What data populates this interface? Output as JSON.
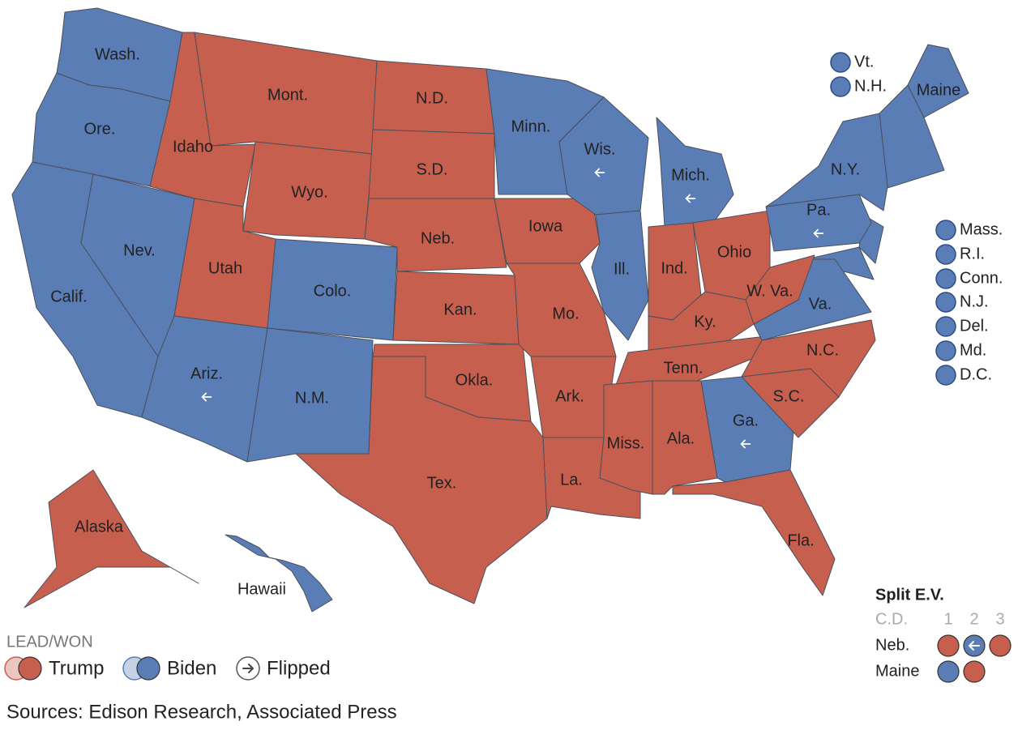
{
  "map": {
    "parties": [
      {
        "label": "Trump",
        "color": "#c75f4f"
      },
      {
        "label": "Biden",
        "color": "#5a7db6"
      }
    ],
    "states": [
      {
        "label": "Wash.",
        "winner": "Biden",
        "flipped": false
      },
      {
        "label": "Ore.",
        "winner": "Biden",
        "flipped": false
      },
      {
        "label": "Calif.",
        "winner": "Biden",
        "flipped": false
      },
      {
        "label": "Nev.",
        "winner": "Biden",
        "flipped": false
      },
      {
        "label": "Idaho",
        "winner": "Trump",
        "flipped": false
      },
      {
        "label": "Mont.",
        "winner": "Trump",
        "flipped": false
      },
      {
        "label": "Wyo.",
        "winner": "Trump",
        "flipped": false
      },
      {
        "label": "Utah",
        "winner": "Trump",
        "flipped": false
      },
      {
        "label": "Colo.",
        "winner": "Biden",
        "flipped": false
      },
      {
        "label": "Ariz.",
        "winner": "Biden",
        "flipped": true
      },
      {
        "label": "N.M.",
        "winner": "Biden",
        "flipped": false
      },
      {
        "label": "N.D.",
        "winner": "Trump",
        "flipped": false
      },
      {
        "label": "S.D.",
        "winner": "Trump",
        "flipped": false
      },
      {
        "label": "Neb.",
        "winner": "Trump",
        "flipped": false
      },
      {
        "label": "Kan.",
        "winner": "Trump",
        "flipped": false
      },
      {
        "label": "Okla.",
        "winner": "Trump",
        "flipped": false
      },
      {
        "label": "Tex.",
        "winner": "Trump",
        "flipped": false
      },
      {
        "label": "Minn.",
        "winner": "Biden",
        "flipped": false
      },
      {
        "label": "Iowa",
        "winner": "Trump",
        "flipped": false
      },
      {
        "label": "Mo.",
        "winner": "Trump",
        "flipped": false
      },
      {
        "label": "Ark.",
        "winner": "Trump",
        "flipped": false
      },
      {
        "label": "La.",
        "winner": "Trump",
        "flipped": false
      },
      {
        "label": "Wis.",
        "winner": "Biden",
        "flipped": true
      },
      {
        "label": "Ill.",
        "winner": "Biden",
        "flipped": false
      },
      {
        "label": "Mich.",
        "winner": "Biden",
        "flipped": true
      },
      {
        "label": "Ind.",
        "winner": "Trump",
        "flipped": false
      },
      {
        "label": "Ohio",
        "winner": "Trump",
        "flipped": false
      },
      {
        "label": "Ky.",
        "winner": "Trump",
        "flipped": false
      },
      {
        "label": "Tenn.",
        "winner": "Trump",
        "flipped": false
      },
      {
        "label": "Miss.",
        "winner": "Trump",
        "flipped": false
      },
      {
        "label": "Ala.",
        "winner": "Trump",
        "flipped": false
      },
      {
        "label": "Ga.",
        "winner": "Biden",
        "flipped": true
      },
      {
        "label": "Fla.",
        "winner": "Trump",
        "flipped": false
      },
      {
        "label": "S.C.",
        "winner": "Trump",
        "flipped": false
      },
      {
        "label": "N.C.",
        "winner": "Trump",
        "flipped": false
      },
      {
        "label": "Va.",
        "winner": "Biden",
        "flipped": false
      },
      {
        "label": "W. Va.",
        "winner": "Trump",
        "flipped": false
      },
      {
        "label": "Pa.",
        "winner": "Biden",
        "flipped": true
      },
      {
        "label": "N.Y.",
        "winner": "Biden",
        "flipped": false
      },
      {
        "label": "Maine",
        "winner": "Biden",
        "flipped": false
      },
      {
        "label": "Alaska",
        "winner": "Trump",
        "flipped": false
      },
      {
        "label": "Hawaii",
        "winner": "Biden",
        "flipped": false
      }
    ],
    "small_states": [
      {
        "label": "Vt.",
        "winner": "Biden"
      },
      {
        "label": "N.H.",
        "winner": "Biden"
      },
      {
        "label": "Mass.",
        "winner": "Biden"
      },
      {
        "label": "R.I.",
        "winner": "Biden"
      },
      {
        "label": "Conn.",
        "winner": "Biden"
      },
      {
        "label": "N.J.",
        "winner": "Biden"
      },
      {
        "label": "Del.",
        "winner": "Biden"
      },
      {
        "label": "Md.",
        "winner": "Biden"
      },
      {
        "label": "D.C.",
        "winner": "Biden"
      }
    ],
    "split": {
      "title": "Split E.V.",
      "header": "C.D.",
      "districts": [
        "1",
        "2",
        "3"
      ],
      "rows": [
        {
          "label": "Neb.",
          "winners": [
            "Trump",
            "Biden",
            "Trump"
          ],
          "flipped": [
            false,
            true,
            false
          ]
        },
        {
          "label": "Maine",
          "winners": [
            "Biden",
            "Trump"
          ],
          "flipped": [
            false,
            false
          ]
        }
      ]
    },
    "legend": {
      "title": "LEAD/WON",
      "flipped": "Flipped"
    },
    "source": "Sources: Edison Research, Associated Press"
  }
}
